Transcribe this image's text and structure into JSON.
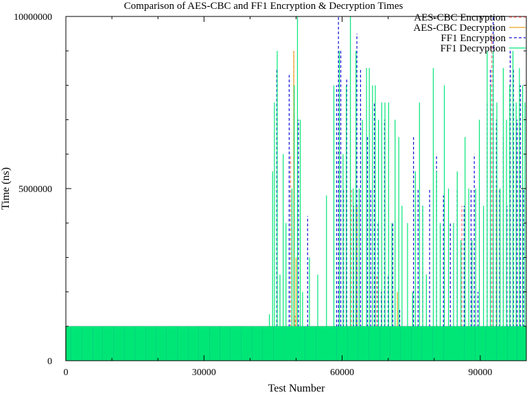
{
  "chart_data": {
    "type": "line",
    "title": "Comparison of AES-CBC and FF1 Encryption & Decryption Times",
    "xlabel": "Test Number",
    "ylabel": "Time (ns)",
    "xlim": [
      0,
      100000
    ],
    "ylim": [
      0,
      10000000
    ],
    "x_ticks": [
      0,
      30000,
      60000,
      90000
    ],
    "x_minor_ticks": [
      10000,
      20000,
      40000,
      50000,
      70000,
      80000,
      100000
    ],
    "y_ticks": [
      0,
      5000000,
      10000000
    ],
    "y_minor_ticks": [
      1000000,
      2000000,
      3000000,
      4000000,
      6000000,
      7000000,
      8000000,
      9000000
    ],
    "grid": false,
    "legend_position": "top-right",
    "series": [
      {
        "name": "AES-CBC Encryption",
        "color": "#ff6b6b",
        "dash": "dashed",
        "baseline": 1000000,
        "spikes": [
          [
            48800,
            6000000
          ],
          [
            49500,
            9000000
          ],
          [
            49800,
            1300000
          ],
          [
            62000,
            5000000
          ],
          [
            67500,
            2500000
          ],
          [
            86000,
            4500000
          ],
          [
            92500,
            9500000
          ],
          [
            96500,
            9000000
          ]
        ]
      },
      {
        "name": "AES-CBC Decryption",
        "color": "#e6a020",
        "dash": "solid",
        "baseline": 1000000,
        "spikes": [
          [
            49500,
            9000000
          ],
          [
            50000,
            3000000
          ],
          [
            63200,
            4500000
          ],
          [
            72000,
            2000000
          ],
          [
            93500,
            5000000
          ]
        ]
      },
      {
        "name": "FF1 Encryption",
        "color": "#1010dd",
        "dash": "dashed",
        "baseline": 1000000,
        "spikes": [
          [
            45800,
            8500000
          ],
          [
            48500,
            8300000
          ],
          [
            50500,
            7000000
          ],
          [
            52500,
            4200000
          ],
          [
            58800,
            8000000
          ],
          [
            59200,
            10000000
          ],
          [
            59700,
            9000000
          ],
          [
            60300,
            5000000
          ],
          [
            61000,
            8200000
          ],
          [
            62500,
            4500000
          ],
          [
            63200,
            9500000
          ],
          [
            64000,
            8500000
          ],
          [
            65500,
            6500000
          ],
          [
            66200,
            5000000
          ],
          [
            67000,
            7500000
          ],
          [
            67800,
            4000000
          ],
          [
            68500,
            2000000
          ],
          [
            69200,
            7000000
          ],
          [
            70000,
            2500000
          ],
          [
            71000,
            4000000
          ],
          [
            72500,
            1500000
          ],
          [
            75500,
            6500000
          ],
          [
            76500,
            5000000
          ],
          [
            77500,
            4500000
          ],
          [
            79000,
            5000000
          ],
          [
            80500,
            6000000
          ],
          [
            82000,
            4800000
          ],
          [
            83500,
            4000000
          ],
          [
            85000,
            5000000
          ],
          [
            86500,
            4500000
          ],
          [
            88000,
            5000000
          ],
          [
            88700,
            6000000
          ],
          [
            89500,
            2000000
          ],
          [
            91500,
            7500000
          ],
          [
            92200,
            8500000
          ],
          [
            92800,
            10000000
          ],
          [
            93500,
            7000000
          ],
          [
            94200,
            5000000
          ],
          [
            95000,
            6500000
          ],
          [
            95800,
            4500000
          ],
          [
            96500,
            9000000
          ],
          [
            97200,
            8500000
          ],
          [
            98000,
            7000000
          ],
          [
            98700,
            8000000
          ],
          [
            99400,
            5000000
          ]
        ]
      },
      {
        "name": "FF1 Decryption",
        "color": "#00e676",
        "dash": "solid",
        "baseline": 1000000,
        "spikes": [
          [
            44200,
            1350000
          ],
          [
            44900,
            5500000
          ],
          [
            45300,
            7500000
          ],
          [
            45900,
            9000000
          ],
          [
            46500,
            2500000
          ],
          [
            47200,
            6000000
          ],
          [
            47800,
            4000000
          ],
          [
            49100,
            5000000
          ],
          [
            49600,
            8000000
          ],
          [
            50300,
            10000000
          ],
          [
            50900,
            7000000
          ],
          [
            51400,
            2000000
          ],
          [
            52900,
            3000000
          ],
          [
            54700,
            2500000
          ],
          [
            56600,
            4800000
          ],
          [
            58200,
            8000000
          ],
          [
            59400,
            9000000
          ],
          [
            60200,
            6000000
          ],
          [
            60900,
            8000000
          ],
          [
            61800,
            10000000
          ],
          [
            62400,
            5000000
          ],
          [
            63000,
            9000000
          ],
          [
            63700,
            5000000
          ],
          [
            64400,
            7000000
          ],
          [
            65300,
            8500000
          ],
          [
            65900,
            8500000
          ],
          [
            66600,
            8000000
          ],
          [
            67200,
            8000000
          ],
          [
            67900,
            7000000
          ],
          [
            68600,
            7500000
          ],
          [
            69300,
            7500000
          ],
          [
            70100,
            7500000
          ],
          [
            70800,
            4000000
          ],
          [
            71500,
            7000000
          ],
          [
            72300,
            6500000
          ],
          [
            73000,
            4500000
          ],
          [
            74200,
            4000000
          ],
          [
            75300,
            2000000
          ],
          [
            75900,
            5500000
          ],
          [
            76800,
            7500000
          ],
          [
            77500,
            4500000
          ],
          [
            78300,
            2500000
          ],
          [
            79800,
            8500000
          ],
          [
            80500,
            5500000
          ],
          [
            81300,
            4000000
          ],
          [
            82200,
            8000000
          ],
          [
            83100,
            5000000
          ],
          [
            84200,
            4000000
          ],
          [
            85000,
            5500000
          ],
          [
            85800,
            3500000
          ],
          [
            86700,
            6500000
          ],
          [
            87500,
            5000000
          ],
          [
            88200,
            3500000
          ],
          [
            89000,
            5000000
          ],
          [
            89800,
            7000000
          ],
          [
            90700,
            4500000
          ],
          [
            91500,
            9000000
          ],
          [
            92200,
            8000000
          ],
          [
            92800,
            9000000
          ],
          [
            93600,
            7500000
          ],
          [
            94300,
            5000000
          ],
          [
            95000,
            8500000
          ],
          [
            95700,
            7000000
          ],
          [
            96400,
            8000000
          ],
          [
            97100,
            9000000
          ],
          [
            97800,
            7500000
          ],
          [
            98500,
            8500000
          ],
          [
            99200,
            8000000
          ],
          [
            99700,
            7500000
          ]
        ]
      }
    ]
  }
}
